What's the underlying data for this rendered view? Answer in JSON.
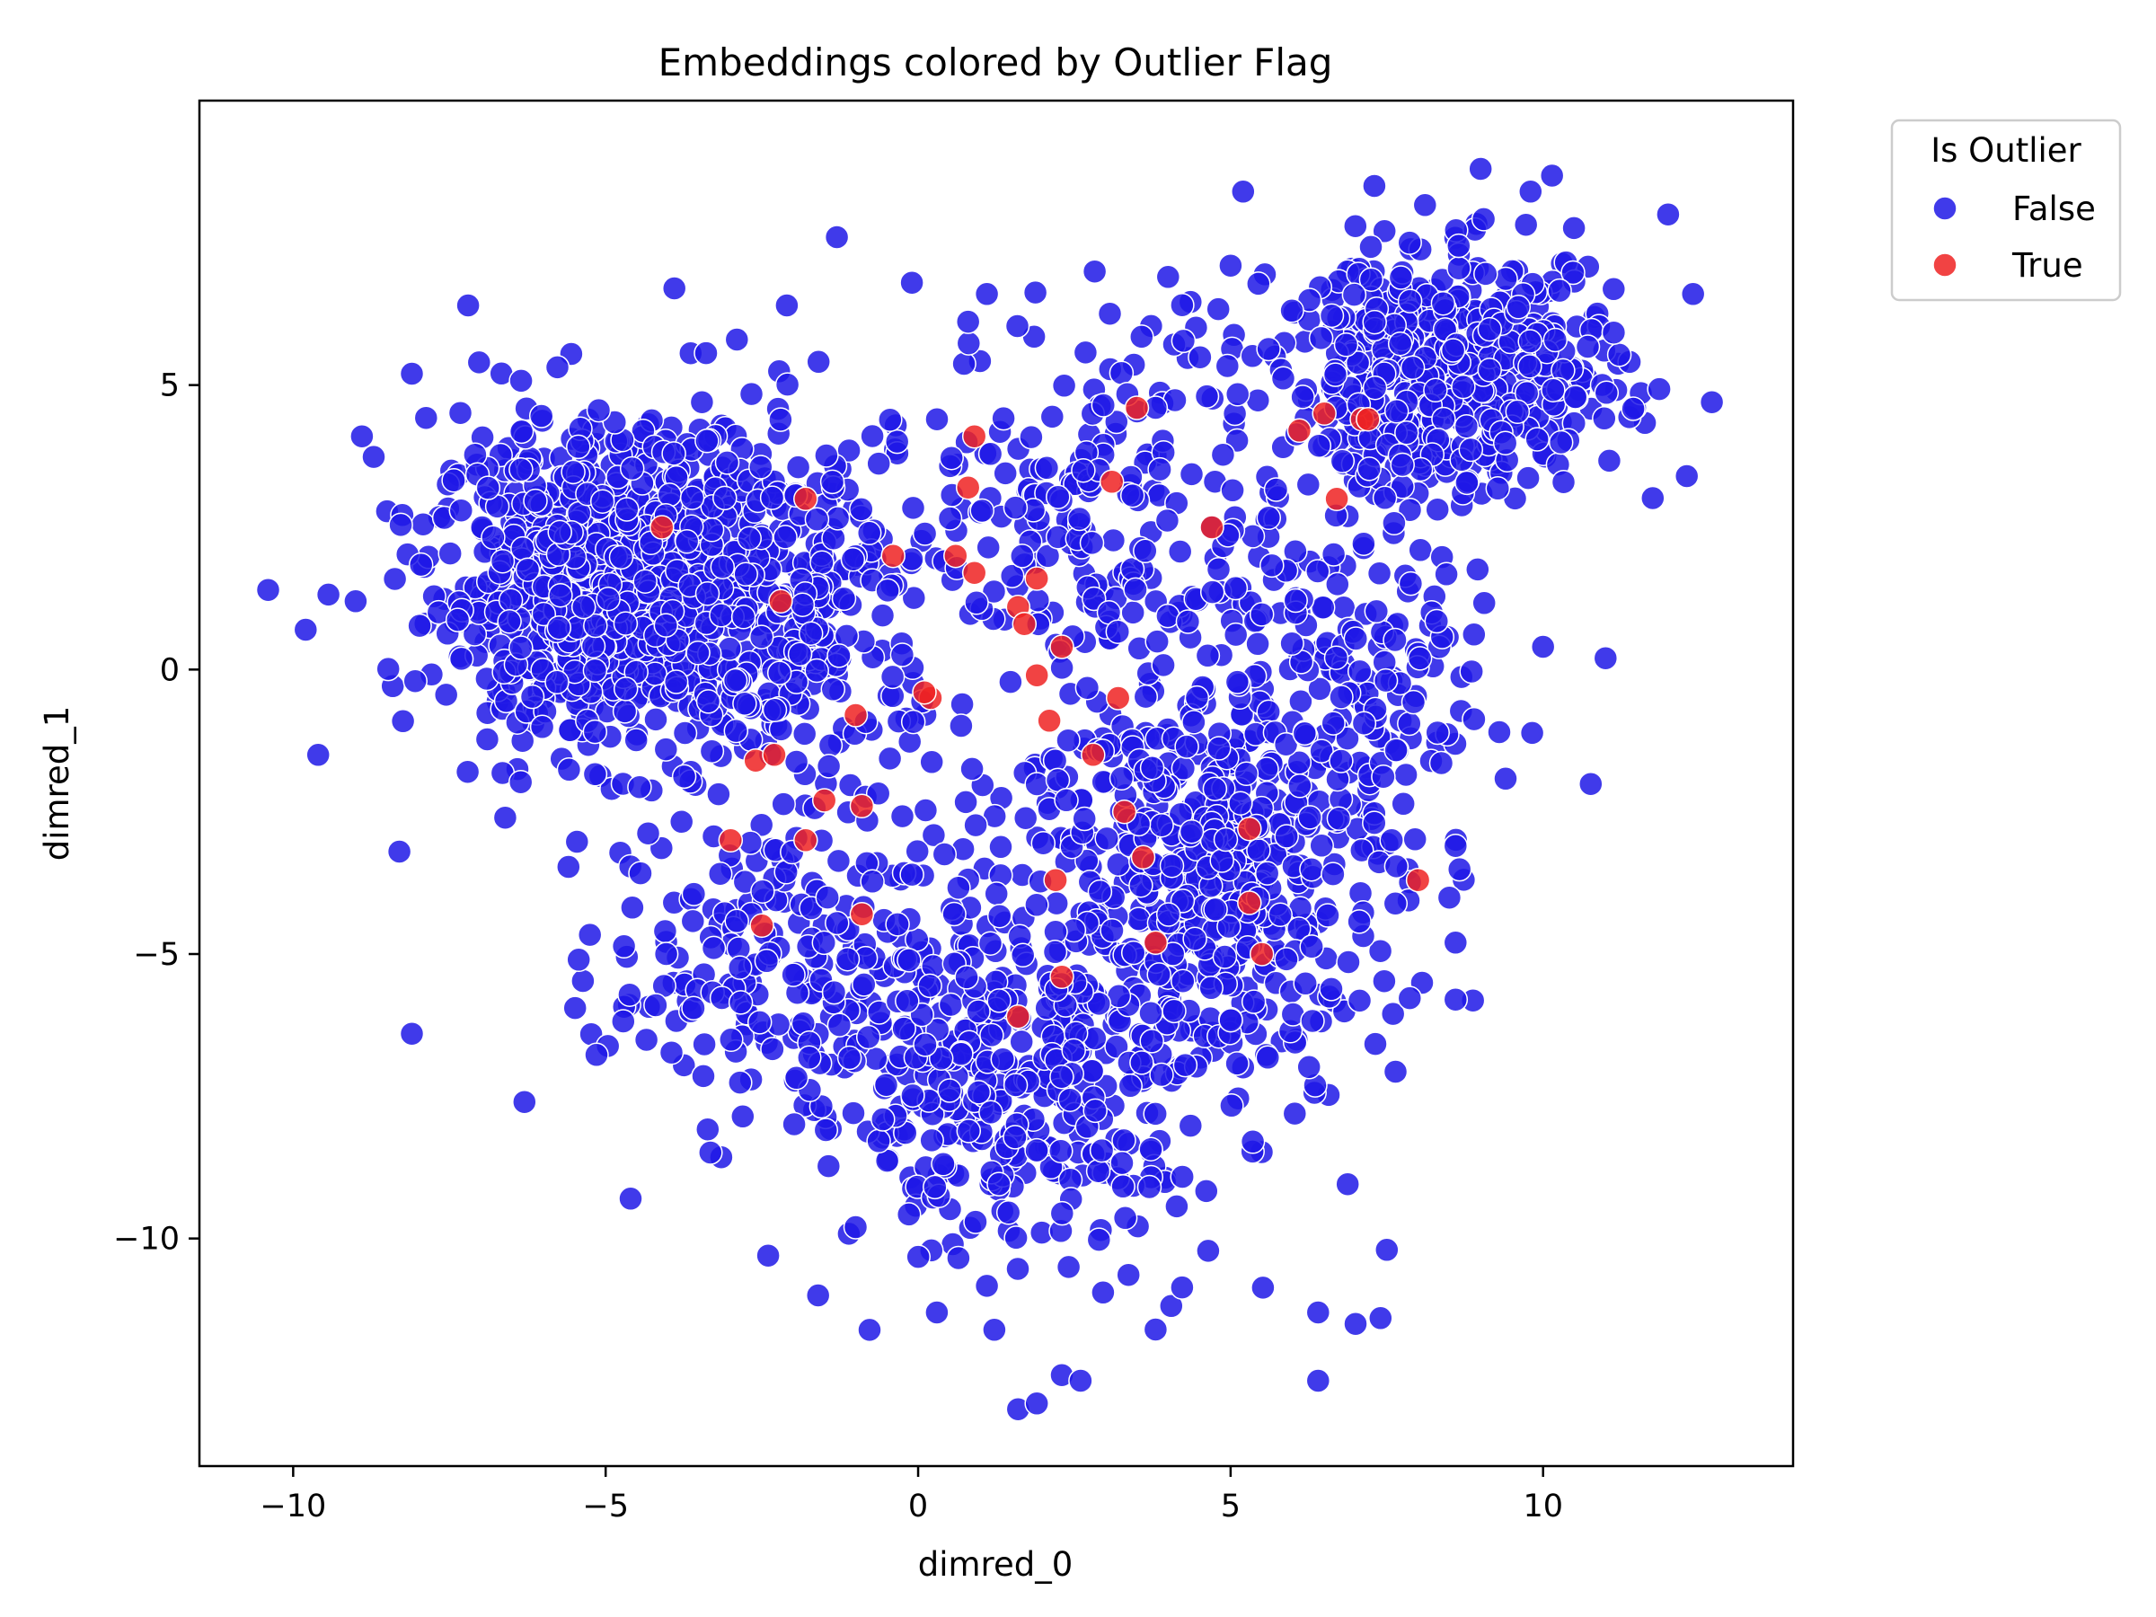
{
  "chart_data": {
    "type": "scatter",
    "title": "Embeddings colored by Outlier Flag",
    "xlabel": "dimred_0",
    "ylabel": "dimred_1",
    "xlim": [
      -11.5,
      14.0
    ],
    "ylim": [
      -14.0,
      10.0
    ],
    "x_ticks": [
      -10,
      -5,
      0,
      5,
      10
    ],
    "y_ticks": [
      -10,
      -5,
      0,
      5
    ],
    "x_tick_labels": [
      "−10",
      "−5",
      "0",
      "5",
      "10"
    ],
    "y_tick_labels": [
      "−10",
      "−5",
      "0",
      "5"
    ],
    "grid": false,
    "legend": {
      "title": "Is Outlier",
      "placement": "outside-top-right",
      "entries": [
        "False",
        "True"
      ]
    },
    "colors": {
      "False": "#1f17e6",
      "True": "#ee2222"
    },
    "series": [
      {
        "name": "False",
        "clusters": [
          {
            "cx": -5.0,
            "cy": 1.5,
            "sx": 2.2,
            "sy": 2.2,
            "n": 900
          },
          {
            "cx": -2.0,
            "cy": 1.0,
            "sx": 2.0,
            "sy": 2.6,
            "n": 300
          },
          {
            "cx": 8.5,
            "cy": 5.2,
            "sx": 2.2,
            "sy": 1.7,
            "n": 520
          },
          {
            "cx": 4.5,
            "cy": -3.5,
            "sx": 2.6,
            "sy": 3.2,
            "n": 560
          },
          {
            "cx": 1.5,
            "cy": -7.5,
            "sx": 2.8,
            "sy": 2.4,
            "n": 330
          },
          {
            "cx": -2.0,
            "cy": -5.0,
            "sx": 2.4,
            "sy": 2.2,
            "n": 230
          },
          {
            "cx": 3.0,
            "cy": 3.0,
            "sx": 2.4,
            "sy": 2.6,
            "n": 200
          },
          {
            "cx": 7.0,
            "cy": 0.0,
            "sx": 2.0,
            "sy": 2.4,
            "n": 150
          }
        ],
        "points": [
          {
            "x": -10.4,
            "y": 1.4
          },
          {
            "x": -9.8,
            "y": 0.7
          },
          {
            "x": -9.0,
            "y": 1.2
          },
          {
            "x": -9.6,
            "y": -1.5
          },
          {
            "x": -8.9,
            "y": 4.1
          },
          {
            "x": -8.1,
            "y": 5.2
          },
          {
            "x": -7.2,
            "y": 6.4
          },
          {
            "x": -8.1,
            "y": -6.4
          },
          {
            "x": -6.3,
            "y": -7.6
          },
          {
            "x": -4.6,
            "y": -9.3
          },
          {
            "x": -2.4,
            "y": -10.3
          },
          {
            "x": -1.6,
            "y": -11.0
          },
          {
            "x": -1.0,
            "y": -9.8
          },
          {
            "x": 0.3,
            "y": -11.3
          },
          {
            "x": 1.6,
            "y": -13.0
          },
          {
            "x": 1.9,
            "y": -12.9
          },
          {
            "x": 2.3,
            "y": -12.4
          },
          {
            "x": 2.6,
            "y": -12.5
          },
          {
            "x": 3.8,
            "y": -11.6
          },
          {
            "x": 6.4,
            "y": -12.5
          },
          {
            "x": 6.4,
            "y": -11.3
          },
          {
            "x": 7.0,
            "y": -11.5
          },
          {
            "x": 7.4,
            "y": -11.4
          },
          {
            "x": 7.5,
            "y": -10.2
          },
          {
            "x": -1.3,
            "y": 7.6
          },
          {
            "x": -0.1,
            "y": 6.8
          },
          {
            "x": 1.1,
            "y": 6.6
          },
          {
            "x": 5.2,
            "y": 8.4
          },
          {
            "x": 9.0,
            "y": 8.8
          },
          {
            "x": 9.8,
            "y": 8.4
          },
          {
            "x": 7.3,
            "y": 8.5
          },
          {
            "x": 12.0,
            "y": 8.0
          },
          {
            "x": 12.4,
            "y": 6.6
          },
          {
            "x": 12.7,
            "y": 4.7
          },
          {
            "x": 12.3,
            "y": 3.4
          },
          {
            "x": 11.0,
            "y": 0.2
          },
          {
            "x": 10.0,
            "y": 0.4
          },
          {
            "x": 9.3,
            "y": -1.1
          },
          {
            "x": 8.6,
            "y": -3.1
          },
          {
            "x": 8.6,
            "y": -4.8
          },
          {
            "x": 8.6,
            "y": -5.8
          },
          {
            "x": -3.9,
            "y": 6.7
          },
          {
            "x": -2.1,
            "y": 6.4
          },
          {
            "x": -2.9,
            "y": 5.8
          },
          {
            "x": 4.0,
            "y": 6.9
          },
          {
            "x": 5.0,
            "y": 7.1
          },
          {
            "x": 3.8,
            "y": 4.6
          },
          {
            "x": -8.3,
            "y": -3.2
          }
        ]
      },
      {
        "name": "True",
        "points": [
          {
            "x": -4.1,
            "y": 2.5
          },
          {
            "x": -2.2,
            "y": 1.2
          },
          {
            "x": -1.8,
            "y": 3.0
          },
          {
            "x": -2.6,
            "y": -1.6
          },
          {
            "x": -2.3,
            "y": -1.5
          },
          {
            "x": -3.0,
            "y": -3.0
          },
          {
            "x": -2.5,
            "y": -4.5
          },
          {
            "x": -1.5,
            "y": -2.3
          },
          {
            "x": -1.8,
            "y": -3.0
          },
          {
            "x": -0.9,
            "y": -2.4
          },
          {
            "x": -0.9,
            "y": -4.3
          },
          {
            "x": -1.0,
            "y": -0.8
          },
          {
            "x": 0.2,
            "y": -0.5
          },
          {
            "x": 0.6,
            "y": 2.0
          },
          {
            "x": 0.9,
            "y": 1.7
          },
          {
            "x": 0.9,
            "y": 4.1
          },
          {
            "x": 0.8,
            "y": 3.2
          },
          {
            "x": 1.6,
            "y": 1.1
          },
          {
            "x": 1.7,
            "y": 0.8
          },
          {
            "x": 1.9,
            "y": 1.6
          },
          {
            "x": 1.9,
            "y": -0.1
          },
          {
            "x": 2.3,
            "y": 0.4
          },
          {
            "x": 2.1,
            "y": -0.9
          },
          {
            "x": 2.8,
            "y": -1.5
          },
          {
            "x": 3.1,
            "y": 3.3
          },
          {
            "x": 3.2,
            "y": -0.5
          },
          {
            "x": 3.3,
            "y": -2.5
          },
          {
            "x": 3.6,
            "y": -3.3
          },
          {
            "x": 3.5,
            "y": 4.6
          },
          {
            "x": 4.7,
            "y": 2.5
          },
          {
            "x": 3.8,
            "y": -4.8
          },
          {
            "x": 5.3,
            "y": -2.8
          },
          {
            "x": 5.3,
            "y": -4.1
          },
          {
            "x": 5.5,
            "y": -5.0
          },
          {
            "x": 6.1,
            "y": 4.2
          },
          {
            "x": 6.5,
            "y": 4.5
          },
          {
            "x": 6.7,
            "y": 3.0
          },
          {
            "x": 7.1,
            "y": 4.4
          },
          {
            "x": 7.2,
            "y": 4.4
          },
          {
            "x": 8.0,
            "y": -3.7
          },
          {
            "x": 2.3,
            "y": -5.4
          },
          {
            "x": 1.6,
            "y": -6.1
          },
          {
            "x": 2.2,
            "y": -3.7
          },
          {
            "x": 0.1,
            "y": -0.4
          },
          {
            "x": -0.4,
            "y": 2.0
          }
        ]
      }
    ]
  }
}
